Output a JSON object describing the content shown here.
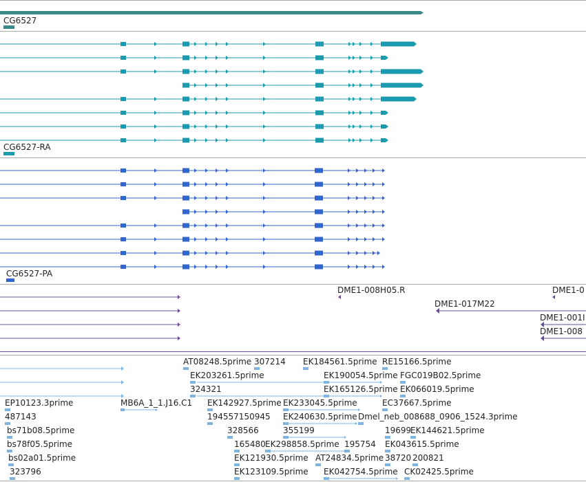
{
  "colors": {
    "gene": "#3b8a8a",
    "transcript": "#1c9aae",
    "protein": "#3366cc",
    "clone": "#6b4c9a",
    "est": "#7fb3e0",
    "separator": "#aaaaaa"
  },
  "tracks": {
    "gene": {
      "label": "CG6527"
    },
    "transcripts": {
      "label": "CG6527-RA"
    },
    "proteins": {
      "label": "CG6527-PA"
    },
    "clones": {
      "labels": [
        "DME1-008H05.R",
        "DME1-0",
        "DME1-017M22",
        "DME1-001I",
        "DME1-008"
      ]
    },
    "ests": {
      "labels": [
        "AT08248.5prime",
        "307214",
        "EK184561.5prime",
        "RE15166.5prime",
        "EK203261.5prime",
        "EK190054.5prime",
        "FGC019B02.5prime",
        "324321",
        "EK165126.5prime",
        "EK066019.5prime",
        "EP10123.3prime",
        "MB6A_1_1.J16.C1",
        "EK142927.5prime",
        "EK233045.5prime",
        "EC37667.5prime",
        "487143",
        "194557150945",
        "EK240630.5prime",
        "Dmel_neb_008688_0906_1524.3prime",
        "bs71b08.5prime",
        "328566",
        "355199",
        "19699",
        "EK144621.5prime",
        "bs78f05.5prime",
        "165480",
        "EK298858.5prime",
        "195754",
        "EK043615.5prime",
        "bs02a01.5prime",
        "EK121930.5prime",
        "AT24834.5prime",
        "38720",
        "200821",
        "323796",
        "EK123109.5prime",
        "EK042754.5prime",
        "CK02425.5prime"
      ]
    }
  }
}
